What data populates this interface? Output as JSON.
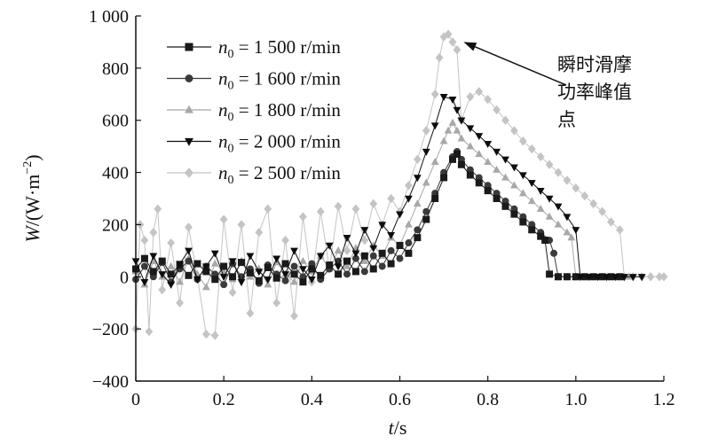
{
  "chart_data": {
    "type": "line",
    "xlabel_var": "t",
    "xlabel_unit": "/s",
    "ylabel_var": "W",
    "ylabel_unit": "/(W·m",
    "ylabel_exp": "−2",
    "ylabel_close": ")",
    "xlim": [
      0,
      1.2
    ],
    "ylim": [
      -400,
      1000
    ],
    "x_ticks": [
      0,
      0.2,
      0.4,
      0.6,
      0.8,
      1.0,
      1.2
    ],
    "x_tick_labels": [
      "0",
      "0.2",
      "0.4",
      "0.6",
      "0.8",
      "1.0",
      "1.2"
    ],
    "y_ticks": [
      -400,
      -200,
      0,
      200,
      400,
      600,
      800,
      1000
    ],
    "y_tick_labels": [
      "−400",
      "−200",
      "0",
      "200",
      "400",
      "600",
      "800",
      "1 000"
    ],
    "grid": false,
    "legend_position": "top-left",
    "annotation": {
      "lines": [
        "瞬时滑摩",
        "功率峰值",
        "点"
      ],
      "target": [
        0.745,
        900
      ]
    },
    "series": [
      {
        "name_var": "n",
        "name_sub": "0",
        "name_rest": " = 1 500 r/min",
        "marker": "square",
        "color": "#1a1a1a",
        "points": [
          [
            0,
            30
          ],
          [
            0.02,
            70
          ],
          [
            0.04,
            20
          ],
          [
            0.06,
            60
          ],
          [
            0.08,
            10
          ],
          [
            0.1,
            45
          ],
          [
            0.12,
            5
          ],
          [
            0.14,
            50
          ],
          [
            0.16,
            20
          ],
          [
            0.18,
            -10
          ],
          [
            0.2,
            40
          ],
          [
            0.22,
            0
          ],
          [
            0.24,
            55
          ],
          [
            0.26,
            15
          ],
          [
            0.28,
            -15
          ],
          [
            0.3,
            35
          ],
          [
            0.32,
            -5
          ],
          [
            0.34,
            50
          ],
          [
            0.36,
            10
          ],
          [
            0.38,
            -20
          ],
          [
            0.4,
            30
          ],
          [
            0.42,
            5
          ],
          [
            0.44,
            45
          ],
          [
            0.46,
            10
          ],
          [
            0.48,
            60
          ],
          [
            0.5,
            20
          ],
          [
            0.52,
            80
          ],
          [
            0.54,
            30
          ],
          [
            0.56,
            90
          ],
          [
            0.58,
            50
          ],
          [
            0.6,
            120
          ],
          [
            0.62,
            90
          ],
          [
            0.64,
            150
          ],
          [
            0.66,
            220
          ],
          [
            0.68,
            300
          ],
          [
            0.7,
            380
          ],
          [
            0.72,
            450
          ],
          [
            0.73,
            470
          ],
          [
            0.74,
            430
          ],
          [
            0.76,
            390
          ],
          [
            0.78,
            360
          ],
          [
            0.8,
            330
          ],
          [
            0.82,
            300
          ],
          [
            0.84,
            270
          ],
          [
            0.86,
            240
          ],
          [
            0.88,
            210
          ],
          [
            0.9,
            180
          ],
          [
            0.92,
            155
          ],
          [
            0.93,
            140
          ],
          [
            0.94,
            10
          ],
          [
            0.96,
            0
          ],
          [
            0.98,
            0
          ],
          [
            1.0,
            0
          ],
          [
            1.02,
            0
          ],
          [
            1.04,
            0
          ],
          [
            1.06,
            0
          ],
          [
            1.08,
            0
          ],
          [
            1.1,
            0
          ]
        ]
      },
      {
        "name_var": "n",
        "name_sub": "0",
        "name_rest": " = 1 600 r/min",
        "marker": "circle",
        "color": "#3a3a3a",
        "points": [
          [
            0,
            -10
          ],
          [
            0.02,
            40
          ],
          [
            0.04,
            0
          ],
          [
            0.06,
            55
          ],
          [
            0.08,
            -20
          ],
          [
            0.1,
            30
          ],
          [
            0.12,
            60
          ],
          [
            0.14,
            -10
          ],
          [
            0.16,
            40
          ],
          [
            0.18,
            10
          ],
          [
            0.2,
            -30
          ],
          [
            0.22,
            50
          ],
          [
            0.24,
            0
          ],
          [
            0.26,
            30
          ],
          [
            0.28,
            -25
          ],
          [
            0.3,
            45
          ],
          [
            0.32,
            10
          ],
          [
            0.34,
            -15
          ],
          [
            0.36,
            40
          ],
          [
            0.38,
            0
          ],
          [
            0.4,
            50
          ],
          [
            0.42,
            -10
          ],
          [
            0.44,
            30
          ],
          [
            0.46,
            60
          ],
          [
            0.48,
            10
          ],
          [
            0.5,
            70
          ],
          [
            0.52,
            20
          ],
          [
            0.54,
            80
          ],
          [
            0.56,
            40
          ],
          [
            0.58,
            100
          ],
          [
            0.6,
            70
          ],
          [
            0.62,
            130
          ],
          [
            0.64,
            180
          ],
          [
            0.66,
            250
          ],
          [
            0.68,
            320
          ],
          [
            0.7,
            400
          ],
          [
            0.72,
            460
          ],
          [
            0.73,
            480
          ],
          [
            0.74,
            450
          ],
          [
            0.76,
            410
          ],
          [
            0.78,
            380
          ],
          [
            0.8,
            350
          ],
          [
            0.82,
            320
          ],
          [
            0.84,
            290
          ],
          [
            0.86,
            260
          ],
          [
            0.88,
            230
          ],
          [
            0.9,
            200
          ],
          [
            0.92,
            170
          ],
          [
            0.94,
            140
          ],
          [
            0.95,
            90
          ],
          [
            0.96,
            0
          ],
          [
            0.98,
            0
          ],
          [
            1.0,
            0
          ]
        ]
      },
      {
        "name_var": "n",
        "name_sub": "0",
        "name_rest": " = 1 800 r/min",
        "marker": "triangle-up",
        "color": "#a8a8a8",
        "points": [
          [
            0,
            20
          ],
          [
            0.02,
            -30
          ],
          [
            0.04,
            60
          ],
          [
            0.06,
            0
          ],
          [
            0.08,
            40
          ],
          [
            0.1,
            -20
          ],
          [
            0.12,
            70
          ],
          [
            0.14,
            10
          ],
          [
            0.16,
            -40
          ],
          [
            0.18,
            50
          ],
          [
            0.2,
            20
          ],
          [
            0.22,
            -10
          ],
          [
            0.24,
            60
          ],
          [
            0.26,
            0
          ],
          [
            0.28,
            30
          ],
          [
            0.3,
            -30
          ],
          [
            0.32,
            55
          ],
          [
            0.34,
            10
          ],
          [
            0.36,
            -20
          ],
          [
            0.38,
            60
          ],
          [
            0.4,
            20
          ],
          [
            0.42,
            80
          ],
          [
            0.44,
            30
          ],
          [
            0.46,
            100
          ],
          [
            0.48,
            40
          ],
          [
            0.5,
            110
          ],
          [
            0.52,
            60
          ],
          [
            0.54,
            120
          ],
          [
            0.56,
            80
          ],
          [
            0.58,
            150
          ],
          [
            0.6,
            120
          ],
          [
            0.62,
            200
          ],
          [
            0.64,
            280
          ],
          [
            0.66,
            360
          ],
          [
            0.68,
            440
          ],
          [
            0.7,
            520
          ],
          [
            0.71,
            560
          ],
          [
            0.72,
            590
          ],
          [
            0.73,
            560
          ],
          [
            0.74,
            530
          ],
          [
            0.76,
            500
          ],
          [
            0.78,
            470
          ],
          [
            0.8,
            440
          ],
          [
            0.82,
            410
          ],
          [
            0.84,
            380
          ],
          [
            0.86,
            350
          ],
          [
            0.88,
            320
          ],
          [
            0.9,
            290
          ],
          [
            0.92,
            260
          ],
          [
            0.94,
            230
          ],
          [
            0.96,
            200
          ],
          [
            0.98,
            170
          ],
          [
            0.99,
            150
          ],
          [
            1.0,
            0
          ],
          [
            1.02,
            0
          ],
          [
            1.04,
            0
          ],
          [
            1.06,
            0
          ],
          [
            1.08,
            0
          ],
          [
            1.1,
            0
          ],
          [
            1.12,
            0
          ]
        ]
      },
      {
        "name_var": "n",
        "name_sub": "0",
        "name_rest": " = 2 000 r/min",
        "marker": "triangle-down",
        "color": "#0d0d0d",
        "points": [
          [
            0,
            60
          ],
          [
            0.02,
            -20
          ],
          [
            0.04,
            80
          ],
          [
            0.06,
            10
          ],
          [
            0.08,
            -30
          ],
          [
            0.1,
            50
          ],
          [
            0.12,
            100
          ],
          [
            0.14,
            -10
          ],
          [
            0.16,
            40
          ],
          [
            0.18,
            90
          ],
          [
            0.2,
            0
          ],
          [
            0.22,
            60
          ],
          [
            0.24,
            -20
          ],
          [
            0.26,
            80
          ],
          [
            0.28,
            20
          ],
          [
            0.3,
            -10
          ],
          [
            0.32,
            70
          ],
          [
            0.34,
            10
          ],
          [
            0.36,
            100
          ],
          [
            0.38,
            30
          ],
          [
            0.4,
            -10
          ],
          [
            0.42,
            80
          ],
          [
            0.44,
            120
          ],
          [
            0.46,
            40
          ],
          [
            0.48,
            150
          ],
          [
            0.5,
            90
          ],
          [
            0.52,
            180
          ],
          [
            0.54,
            110
          ],
          [
            0.56,
            200
          ],
          [
            0.58,
            160
          ],
          [
            0.6,
            240
          ],
          [
            0.62,
            300
          ],
          [
            0.64,
            380
          ],
          [
            0.66,
            480
          ],
          [
            0.68,
            580
          ],
          [
            0.7,
            690
          ],
          [
            0.72,
            680
          ],
          [
            0.73,
            640
          ],
          [
            0.74,
            600
          ],
          [
            0.76,
            570
          ],
          [
            0.78,
            540
          ],
          [
            0.8,
            510
          ],
          [
            0.82,
            480
          ],
          [
            0.84,
            450
          ],
          [
            0.86,
            420
          ],
          [
            0.88,
            390
          ],
          [
            0.9,
            360
          ],
          [
            0.92,
            330
          ],
          [
            0.94,
            300
          ],
          [
            0.96,
            270
          ],
          [
            0.98,
            230
          ],
          [
            1.0,
            180
          ],
          [
            1.01,
            0
          ],
          [
            1.03,
            0
          ],
          [
            1.05,
            0
          ],
          [
            1.07,
            0
          ],
          [
            1.09,
            0
          ],
          [
            1.11,
            0
          ],
          [
            1.13,
            0
          ],
          [
            1.15,
            0
          ]
        ]
      },
      {
        "name_var": "n",
        "name_sub": "0",
        "name_rest": " = 2 500 r/min",
        "marker": "diamond",
        "color": "#c4c4c4",
        "points": [
          [
            0,
            -200
          ],
          [
            0.01,
            200
          ],
          [
            0.02,
            140
          ],
          [
            0.03,
            -210
          ],
          [
            0.04,
            170
          ],
          [
            0.05,
            260
          ],
          [
            0.06,
            -50
          ],
          [
            0.08,
            130
          ],
          [
            0.1,
            -100
          ],
          [
            0.12,
            190
          ],
          [
            0.14,
            0
          ],
          [
            0.16,
            -220
          ],
          [
            0.18,
            -225
          ],
          [
            0.2,
            220
          ],
          [
            0.22,
            -60
          ],
          [
            0.24,
            200
          ],
          [
            0.26,
            -140
          ],
          [
            0.28,
            170
          ],
          [
            0.3,
            260
          ],
          [
            0.32,
            -100
          ],
          [
            0.34,
            140
          ],
          [
            0.36,
            -150
          ],
          [
            0.38,
            230
          ],
          [
            0.4,
            -20
          ],
          [
            0.42,
            250
          ],
          [
            0.44,
            30
          ],
          [
            0.46,
            270
          ],
          [
            0.48,
            100
          ],
          [
            0.5,
            260
          ],
          [
            0.52,
            140
          ],
          [
            0.54,
            280
          ],
          [
            0.56,
            200
          ],
          [
            0.58,
            300
          ],
          [
            0.6,
            250
          ],
          [
            0.62,
            350
          ],
          [
            0.64,
            450
          ],
          [
            0.66,
            560
          ],
          [
            0.68,
            700
          ],
          [
            0.69,
            840
          ],
          [
            0.7,
            920
          ],
          [
            0.71,
            930
          ],
          [
            0.72,
            900
          ],
          [
            0.73,
            870
          ],
          [
            0.74,
            600
          ],
          [
            0.76,
            690
          ],
          [
            0.78,
            710
          ],
          [
            0.8,
            680
          ],
          [
            0.82,
            640
          ],
          [
            0.84,
            600
          ],
          [
            0.86,
            560
          ],
          [
            0.88,
            520
          ],
          [
            0.9,
            490
          ],
          [
            0.92,
            460
          ],
          [
            0.94,
            430
          ],
          [
            0.96,
            400
          ],
          [
            0.98,
            370
          ],
          [
            1.0,
            340
          ],
          [
            1.02,
            310
          ],
          [
            1.04,
            280
          ],
          [
            1.06,
            250
          ],
          [
            1.08,
            210
          ],
          [
            1.1,
            180
          ],
          [
            1.11,
            0
          ],
          [
            1.13,
            0
          ],
          [
            1.15,
            0
          ],
          [
            1.17,
            0
          ],
          [
            1.19,
            0
          ],
          [
            1.2,
            0
          ]
        ]
      }
    ]
  }
}
